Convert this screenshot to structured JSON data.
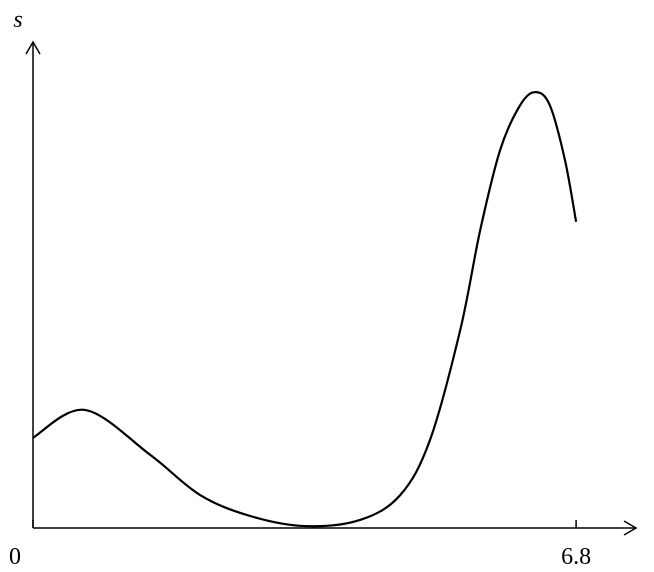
{
  "chart_data": {
    "type": "line",
    "y_label": "s",
    "x": [
      0,
      0.65,
      1.47,
      2.09,
      2.72,
      3.41,
      4.1,
      4.6,
      4.97,
      5.35,
      5.6,
      5.85,
      6.1,
      6.29,
      6.47,
      6.66,
      6.8
    ],
    "series": [
      {
        "color": "#000000",
        "values": [
          1.88,
          2.46,
          1.52,
          0.69,
          0.25,
          0.04,
          0.17,
          0.69,
          1.83,
          4.13,
          6.21,
          7.88,
          8.81,
          9.08,
          8.81,
          7.67,
          6.38
        ]
      }
    ],
    "xlim": [
      0,
      7.55
    ],
    "xticks": [
      0,
      6.8
    ],
    "ylim": [
      0,
      10
    ],
    "grid": false
  }
}
